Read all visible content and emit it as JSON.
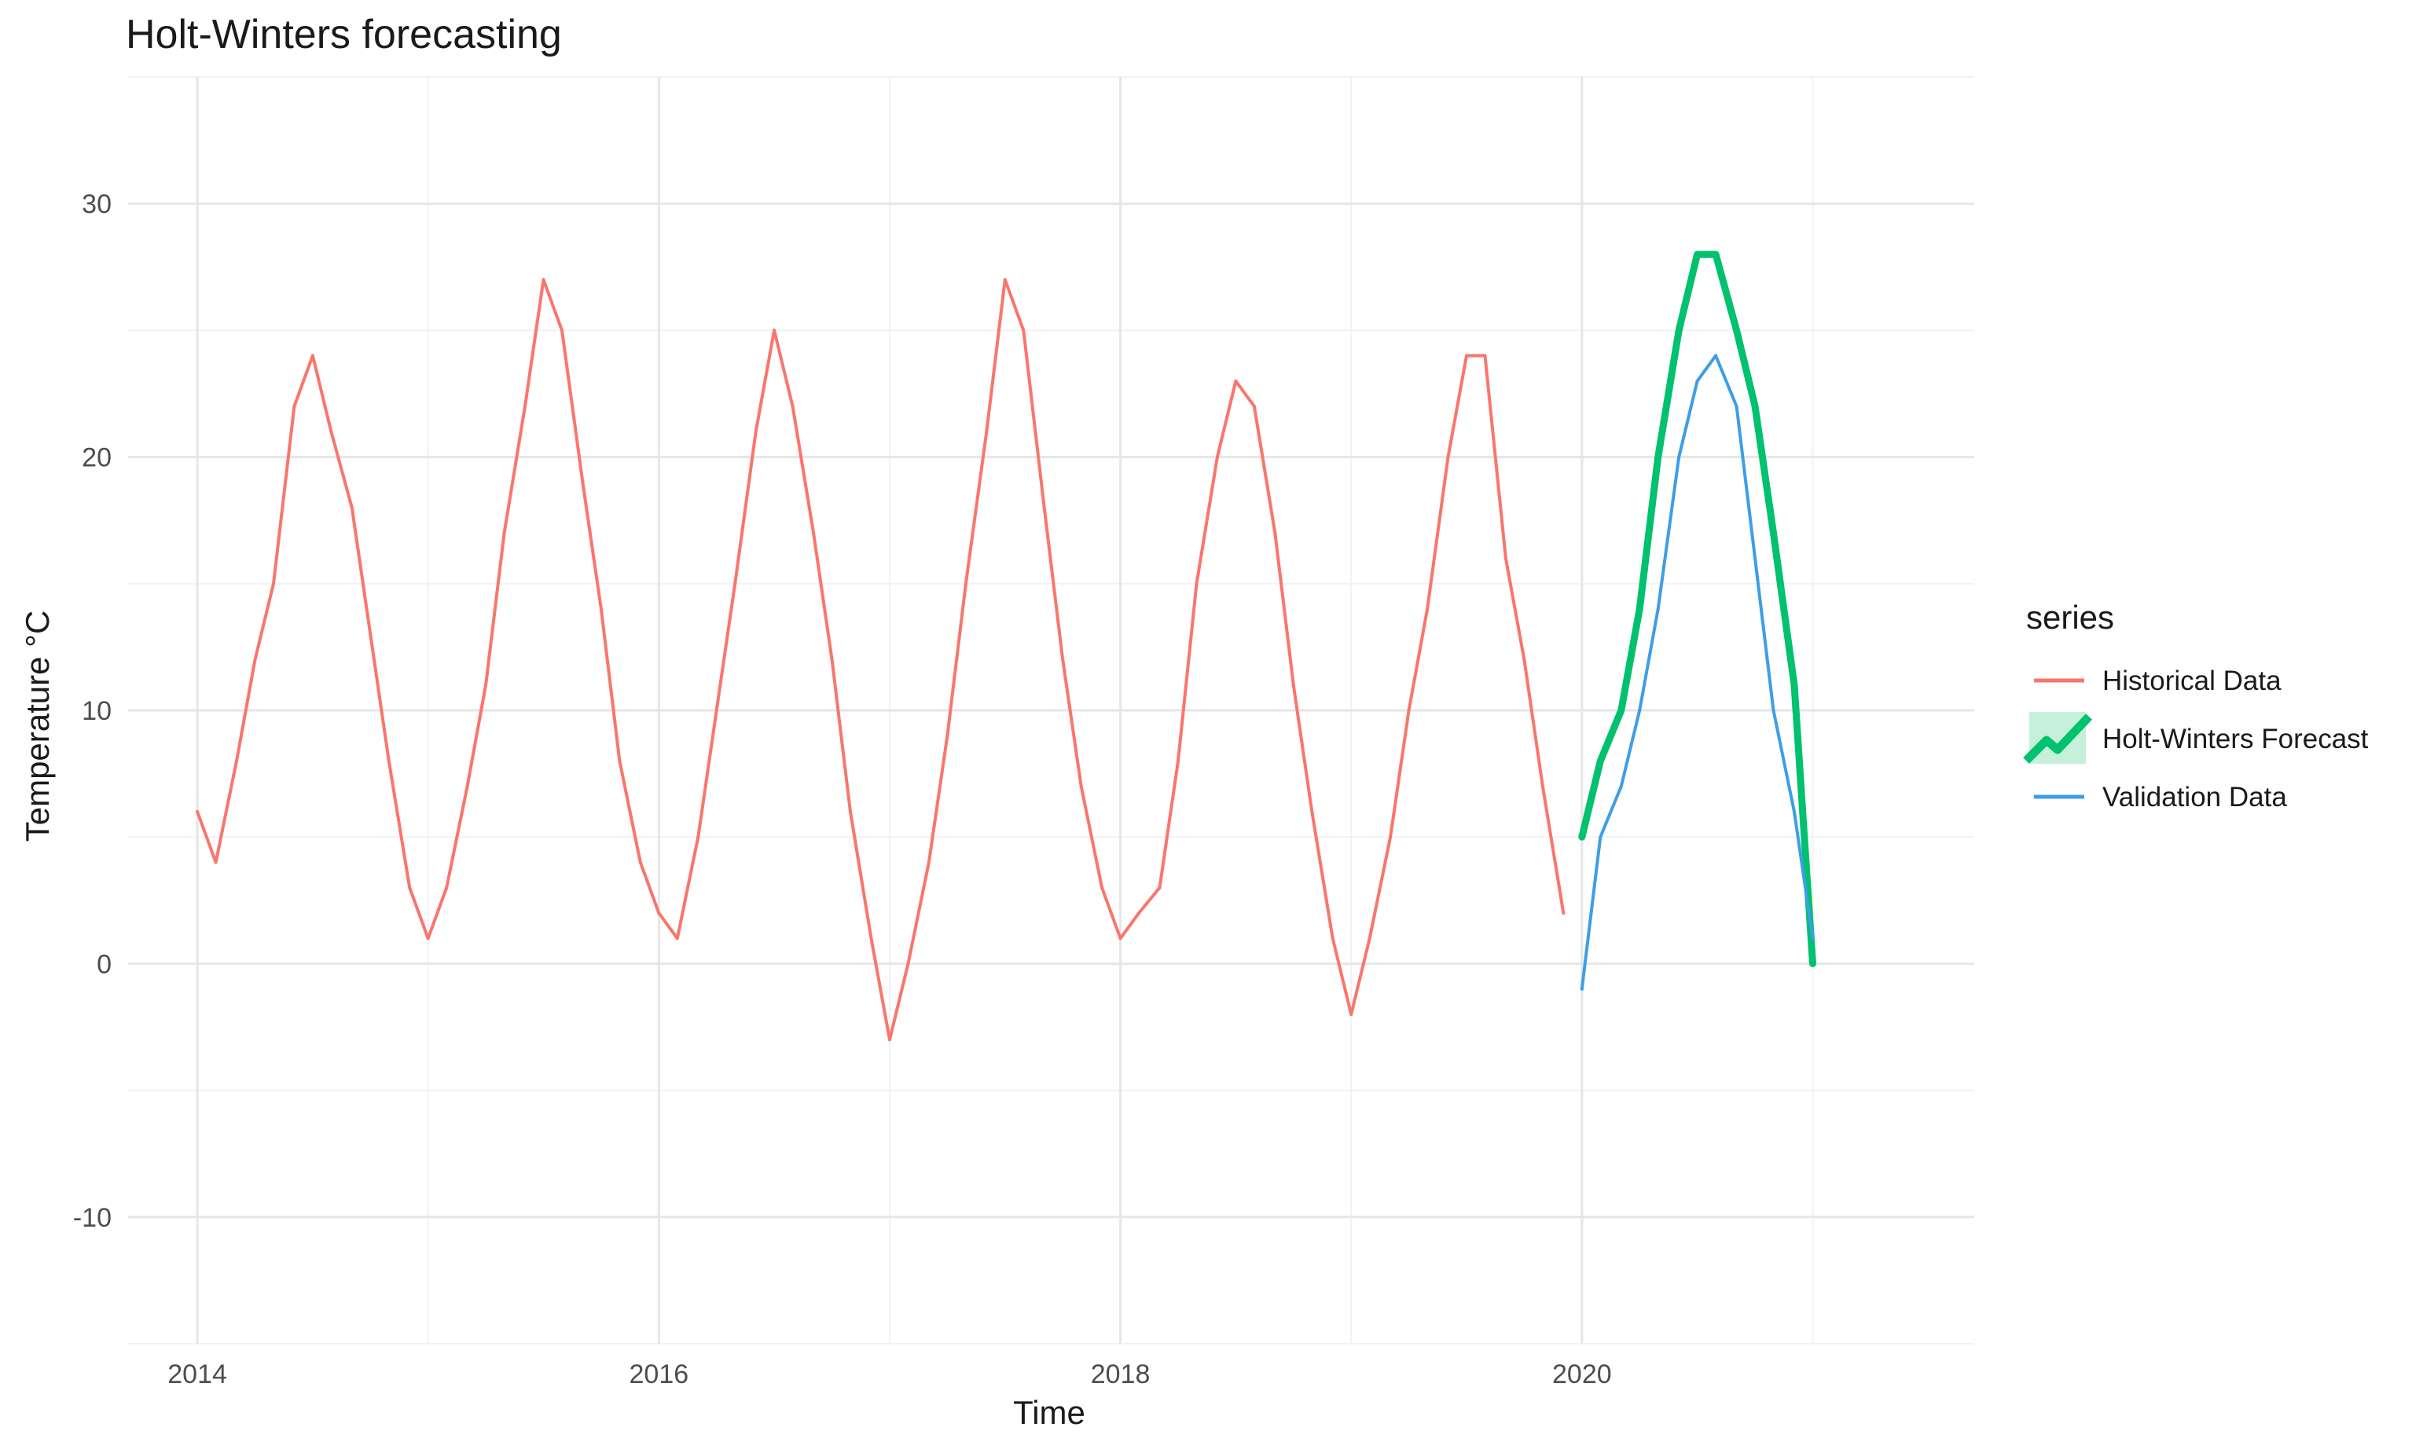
{
  "chart_data": {
    "type": "line",
    "title": "Holt-Winters forecasting",
    "xlabel": "Time",
    "ylabel": "Temperature °C",
    "xlim": [
      2013.7,
      2021.7
    ],
    "ylim": [
      -15,
      35
    ],
    "x_ticks": [
      2014,
      2016,
      2018,
      2020
    ],
    "x_tick_labels": [
      "2014",
      "2016",
      "2018",
      "2020"
    ],
    "y_ticks": [
      -10,
      0,
      10,
      20,
      30
    ],
    "y_tick_labels": [
      "-10",
      "0",
      "10",
      "20",
      "30"
    ],
    "grid": true,
    "legend": {
      "title": "series",
      "placement": "right",
      "entries": [
        "Historical Data",
        "Holt-Winters Forecast",
        "Validation Data"
      ]
    },
    "series": [
      {
        "name": "Historical Data",
        "color": "#f8766d",
        "x": [
          2014.0,
          2014.08,
          2014.17,
          2014.25,
          2014.33,
          2014.42,
          2014.5,
          2014.58,
          2014.67,
          2014.75,
          2014.83,
          2014.92,
          2015.0,
          2015.08,
          2015.17,
          2015.25,
          2015.33,
          2015.42,
          2015.5,
          2015.58,
          2015.67,
          2015.75,
          2015.83,
          2015.92,
          2016.0,
          2016.08,
          2016.17,
          2016.25,
          2016.33,
          2016.42,
          2016.5,
          2016.58,
          2016.67,
          2016.75,
          2016.83,
          2016.92,
          2017.0,
          2017.08,
          2017.17,
          2017.25,
          2017.33,
          2017.42,
          2017.5,
          2017.58,
          2017.67,
          2017.75,
          2017.83,
          2017.92,
          2018.0,
          2018.08,
          2018.17,
          2018.25,
          2018.33,
          2018.42,
          2018.5,
          2018.58,
          2018.67,
          2018.75,
          2018.83,
          2018.92,
          2019.0,
          2019.08,
          2019.17,
          2019.25,
          2019.33,
          2019.42,
          2019.5,
          2019.58,
          2019.67,
          2019.75,
          2019.83,
          2019.92
        ],
        "values": [
          6,
          4,
          8,
          12,
          15,
          22,
          24,
          21,
          18,
          13,
          8,
          3,
          1,
          3,
          7,
          11,
          17,
          22,
          27,
          25,
          19,
          14,
          8,
          4,
          2,
          1,
          5,
          10,
          15,
          21,
          25,
          22,
          17,
          12,
          6,
          1,
          -3,
          0,
          4,
          9,
          15,
          21,
          27,
          25,
          18,
          12,
          7,
          3,
          1,
          2,
          3,
          8,
          15,
          20,
          23,
          22,
          17,
          11,
          6,
          1,
          -2,
          1,
          5,
          10,
          14,
          20,
          24,
          24,
          16,
          12,
          7,
          2
        ]
      },
      {
        "name": "Holt-Winters Forecast",
        "color": "#00c16e",
        "x": [
          2020.0,
          2020.08,
          2020.17,
          2020.25,
          2020.33,
          2020.42,
          2020.5,
          2020.58,
          2020.67,
          2020.75,
          2020.83,
          2020.92,
          2021.0
        ],
        "values": [
          5,
          8,
          10,
          14,
          20,
          25,
          28,
          28,
          25,
          22,
          17,
          11,
          0
        ]
      },
      {
        "name": "Validation Data",
        "color": "#3d9ee8",
        "x": [
          2020.0,
          2020.08,
          2020.17,
          2020.25,
          2020.33,
          2020.42,
          2020.5,
          2020.58,
          2020.67,
          2020.75,
          2020.83,
          2020.92,
          2021.0
        ],
        "values": [
          -1,
          5,
          7,
          10,
          14,
          20,
          23,
          24,
          22,
          16,
          10,
          6,
          1
        ]
      }
    ]
  }
}
